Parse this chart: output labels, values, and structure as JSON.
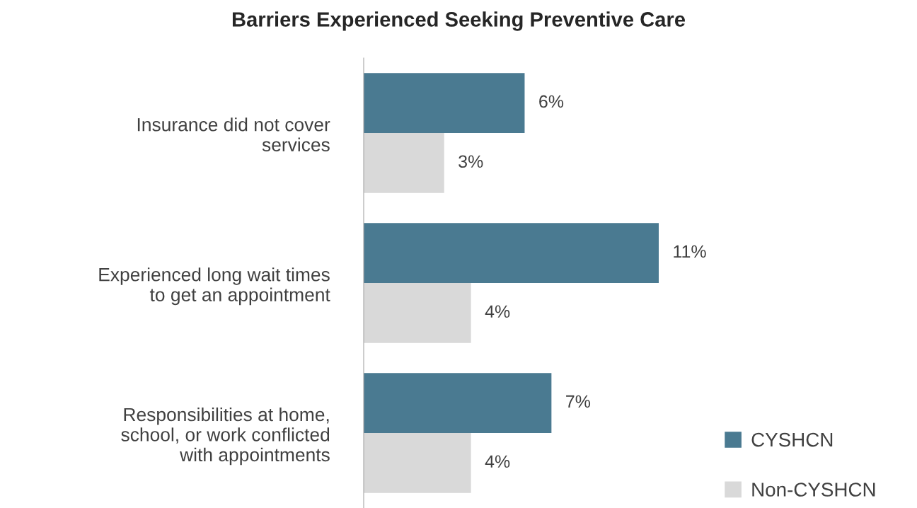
{
  "chart_data": {
    "type": "bar",
    "orientation": "horizontal",
    "title": "Barriers Experienced Seeking Preventive Care",
    "categories": [
      "Insurance did not cover\nservices",
      "Experienced long wait times\nto get an appointment",
      "Responsibilities at home,\nschool, or work conflicted\nwith appointments"
    ],
    "series": [
      {
        "name": "CYSHCN",
        "color": "#4a7a91",
        "values": [
          6,
          11,
          7
        ],
        "value_labels": [
          "6%",
          "11%",
          "7%"
        ]
      },
      {
        "name": "Non-CYSHCN",
        "color": "#d9d9d9",
        "values": [
          3,
          4,
          4
        ],
        "value_labels": [
          "3%",
          "4%",
          "4%"
        ]
      }
    ],
    "legend": "bottom right",
    "grid": false
  }
}
